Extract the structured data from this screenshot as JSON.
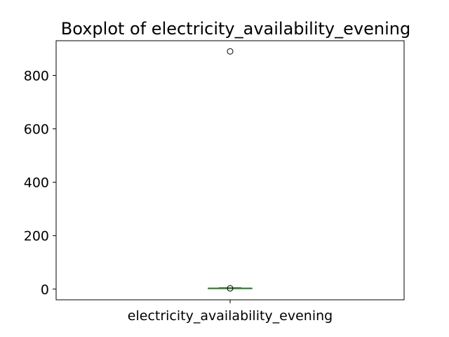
{
  "chart_data": {
    "type": "boxplot",
    "title": "Boxplot of electricity_availability_evening",
    "categories": [
      "electricity_availability_evening"
    ],
    "boxes": [
      {
        "name": "electricity_availability_evening",
        "whisker_low": 2,
        "q1": 2,
        "median": 3,
        "q3": 4,
        "whisker_high": 5,
        "outliers": [
          3,
          890
        ]
      }
    ],
    "yticks": [
      0,
      200,
      400,
      600,
      800
    ],
    "ylim": [
      -40,
      930
    ],
    "grid": false,
    "colors": {
      "box": "#000000",
      "median": "#2ca02c",
      "outlier": "#000000"
    }
  }
}
